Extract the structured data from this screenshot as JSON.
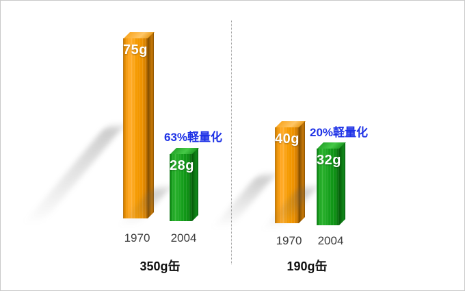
{
  "frame": {
    "background": "#ffffff",
    "border_color": "#c9c9c9"
  },
  "divider": {
    "style": "dotted",
    "color": "#9e9e9e"
  },
  "groups": [
    {
      "title": "350g缶",
      "annotation": "63%軽量化",
      "bars": [
        {
          "value_label": "75g",
          "year": "1970"
        },
        {
          "value_label": "28g",
          "year": "2004"
        }
      ]
    },
    {
      "title": "190g缶",
      "annotation": "20%軽量化",
      "bars": [
        {
          "value_label": "40g",
          "year": "1970"
        },
        {
          "value_label": "32g",
          "year": "2004"
        }
      ]
    }
  ],
  "colors": {
    "bar_1970": "#f59a00",
    "bar_2004": "#149a1b",
    "annotation_text": "#1e32e6",
    "bar_value_text": "#ffffff",
    "year_text": "#3c3c3c",
    "title_text": "#111111",
    "divider": "#9e9e9e"
  },
  "chart_data": {
    "type": "bar",
    "categories": [
      "1970",
      "2004"
    ],
    "groups": [
      {
        "name": "350g缶",
        "values": [
          75,
          28
        ],
        "annotation": "63%軽量化"
      },
      {
        "name": "190g缶",
        "values": [
          40,
          32
        ],
        "annotation": "20%軽量化"
      }
    ],
    "unit": "g",
    "value_labels": [
      [
        "75g",
        "28g"
      ],
      [
        "40g",
        "32g"
      ]
    ],
    "ylim": [
      0,
      80
    ],
    "grid": false,
    "legend": "none",
    "series_colors": {
      "1970": "#f59a00",
      "2004": "#149a1b"
    }
  }
}
